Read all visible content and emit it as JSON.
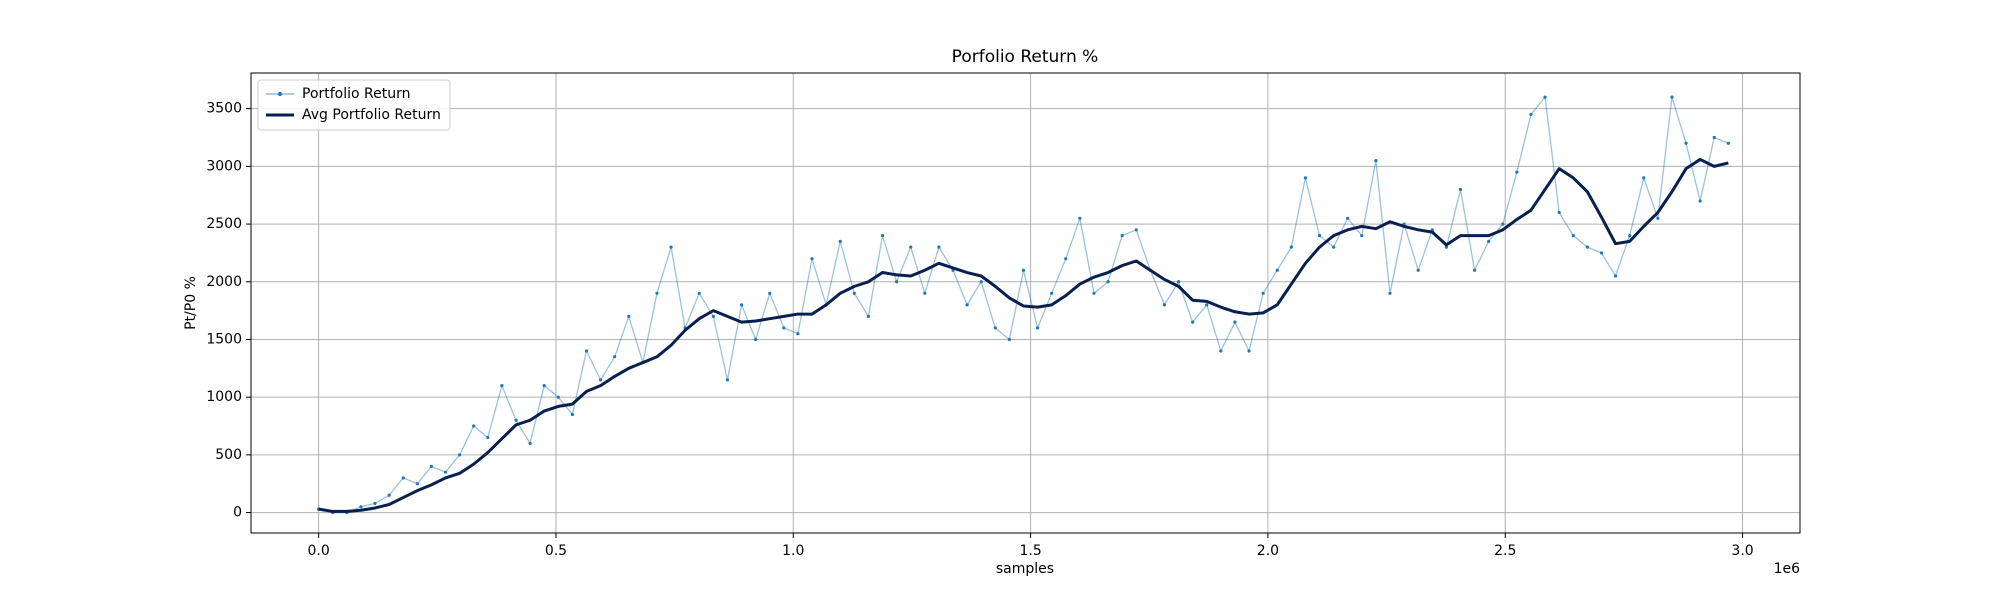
{
  "chart_data": {
    "type": "line",
    "title": "Porfolio Return %",
    "xlabel": "samples",
    "ylabel": "Pt/P0 %",
    "x_offset_label": "1e6",
    "x": [
      0,
      29700,
      59400,
      89100,
      118800,
      148500,
      178200,
      207900,
      237600,
      267300,
      297000,
      326700,
      356400,
      386100,
      415800,
      445500,
      475200,
      504900,
      534600,
      564300,
      594000,
      623700,
      653400,
      683100,
      712800,
      742500,
      772200,
      801900,
      831600,
      861300,
      891000,
      920700,
      950400,
      980100,
      1009800,
      1039500,
      1069200,
      1098900,
      1128600,
      1158300,
      1188000,
      1217700,
      1247400,
      1277100,
      1306800,
      1336500,
      1366200,
      1395900,
      1425600,
      1455300,
      1485000,
      1514700,
      1544400,
      1574100,
      1603800,
      1633500,
      1663200,
      1692900,
      1722600,
      1752300,
      1782000,
      1811700,
      1841400,
      1871100,
      1900800,
      1930500,
      1960200,
      1989900,
      2019600,
      2049300,
      2079000,
      2108700,
      2138400,
      2168100,
      2197800,
      2227500,
      2257200,
      2286900,
      2316600,
      2346300,
      2376000,
      2405700,
      2435400,
      2465100,
      2494800,
      2524500,
      2554200,
      2583900,
      2613600,
      2643300,
      2673000,
      2702700,
      2732400,
      2762100,
      2791800,
      2821500,
      2851200,
      2880900,
      2910600,
      2940300,
      2970000
    ],
    "series": [
      {
        "name": "Portfolio Return",
        "color": "#1f77b4",
        "values": [
          30,
          0,
          0,
          50,
          80,
          150,
          300,
          250,
          400,
          350,
          500,
          750,
          650,
          1100,
          800,
          600,
          1100,
          1000,
          850,
          1400,
          1150,
          1350,
          1700,
          1300,
          1900,
          2300,
          1600,
          1900,
          1700,
          1150,
          1800,
          1500,
          1900,
          1600,
          1550,
          2200,
          1800,
          2350,
          1900,
          1700,
          2400,
          2000,
          2300,
          1900,
          2300,
          2100,
          1800,
          2000,
          1600,
          1500,
          2100,
          1600,
          1900,
          2200,
          2550,
          1900,
          2000,
          2400,
          2450,
          2100,
          1800,
          2000,
          1650,
          1800,
          1400,
          1650,
          1400,
          1900,
          2100,
          2300,
          2900,
          2400,
          2300,
          2550,
          2400,
          3050,
          1900,
          2500,
          2100,
          2450,
          2300,
          2800,
          2100,
          2350,
          2500,
          2950,
          3450,
          3600,
          2600,
          2400,
          2300,
          2250,
          2050,
          2400,
          2900,
          2550,
          3600,
          3200,
          2700,
          3250,
          3200
        ]
      },
      {
        "name": "Avg Portfolio Return",
        "color": "#08204f",
        "values": [
          30,
          10,
          10,
          20,
          40,
          70,
          130,
          190,
          240,
          300,
          340,
          420,
          520,
          640,
          760,
          800,
          880,
          920,
          940,
          1050,
          1100,
          1180,
          1250,
          1300,
          1350,
          1450,
          1580,
          1680,
          1750,
          1700,
          1650,
          1660,
          1680,
          1700,
          1720,
          1720,
          1800,
          1900,
          1960,
          2000,
          2080,
          2060,
          2050,
          2100,
          2160,
          2120,
          2080,
          2050,
          1960,
          1860,
          1790,
          1780,
          1800,
          1880,
          1980,
          2040,
          2080,
          2140,
          2180,
          2100,
          2020,
          1960,
          1840,
          1830,
          1780,
          1740,
          1720,
          1730,
          1800,
          1980,
          2160,
          2300,
          2400,
          2450,
          2480,
          2460,
          2520,
          2480,
          2450,
          2430,
          2320,
          2400,
          2400,
          2400,
          2450,
          2540,
          2620,
          2800,
          2980,
          2900,
          2780,
          2560,
          2330,
          2350,
          2480,
          2600,
          2780,
          2980,
          3060,
          3000,
          3030
        ]
      }
    ],
    "xlim": [
      -142500,
      3121000
    ],
    "ylim": [
      -177,
      3809
    ],
    "xticks": [
      {
        "value": 0,
        "label": "0.0"
      },
      {
        "value": 500000,
        "label": "0.5"
      },
      {
        "value": 1000000,
        "label": "1.0"
      },
      {
        "value": 1500000,
        "label": "1.5"
      },
      {
        "value": 2000000,
        "label": "2.0"
      },
      {
        "value": 2500000,
        "label": "2.5"
      },
      {
        "value": 3000000,
        "label": "3.0"
      }
    ],
    "yticks": [
      0,
      500,
      1000,
      1500,
      2000,
      2500,
      3000,
      3500
    ],
    "grid": true,
    "legend": "upper left"
  }
}
